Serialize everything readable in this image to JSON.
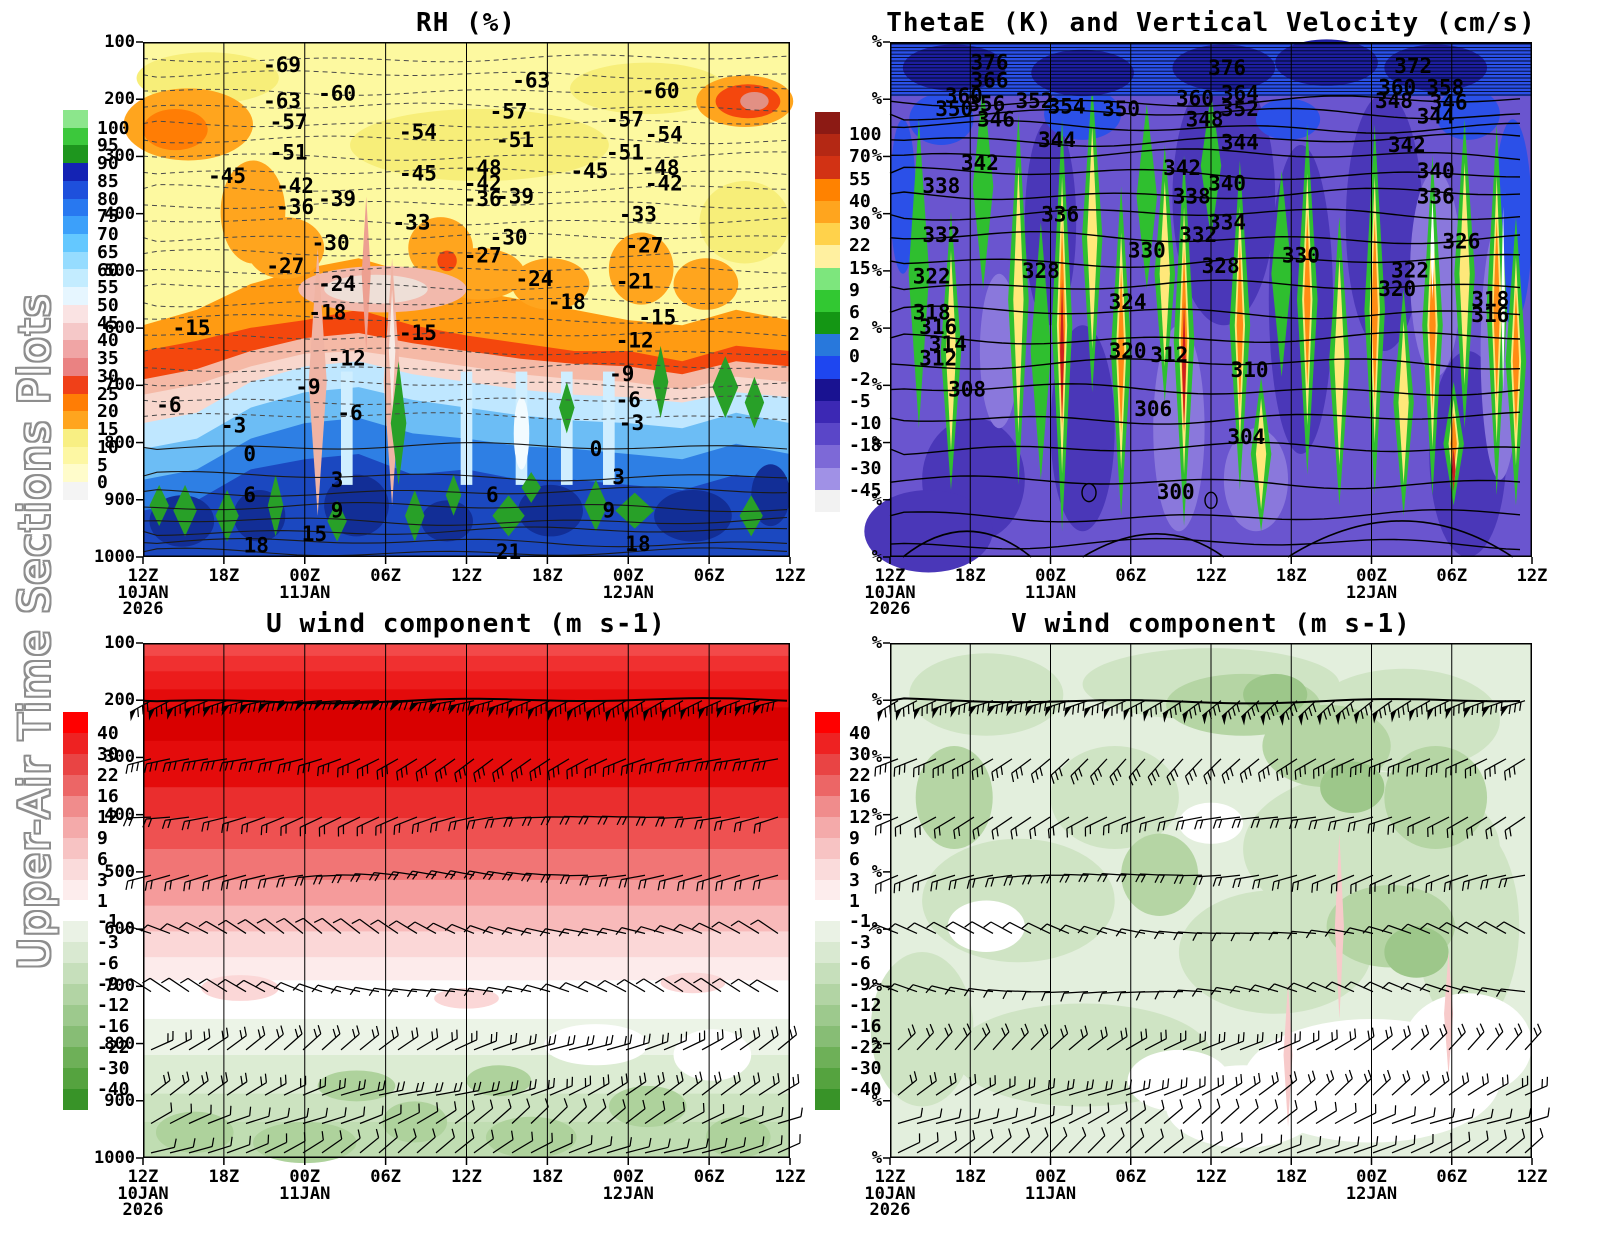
{
  "page": {
    "left_title": "Upper-Air Time Sections Plots"
  },
  "x_axis": {
    "ticks": [
      "12Z",
      "18Z",
      "00Z",
      "06Z",
      "12Z",
      "18Z",
      "00Z",
      "06Z",
      "12Z"
    ],
    "dates": [
      {
        "tick": 0,
        "text": "10JAN"
      },
      {
        "tick": 2,
        "text": "11JAN"
      },
      {
        "tick": 6,
        "text": "12JAN"
      }
    ],
    "year": {
      "tick": 0,
      "text": "2026"
    }
  },
  "chart_data": [
    {
      "id": "rh",
      "type": "filled_contour_time_height",
      "position": "top-left",
      "title": "RH (%)",
      "y_axis": {
        "type": "pressure_hpa",
        "ticks": [
          "100",
          "200",
          "300",
          "400",
          "500",
          "600",
          "700",
          "800",
          "900",
          "1000"
        ]
      },
      "x_ticks": [
        "12Z",
        "18Z",
        "00Z",
        "06Z",
        "12Z",
        "18Z",
        "00Z",
        "06Z",
        "12Z"
      ],
      "colorbar": {
        "unit": "%",
        "labels": [
          "100",
          "95",
          "90",
          "85",
          "80",
          "75",
          "70",
          "65",
          "60",
          "55",
          "50",
          "45",
          "40",
          "35",
          "30",
          "25",
          "20",
          "15",
          "10",
          "5",
          "0"
        ],
        "colors": [
          "#8ce68c",
          "#3cc83c",
          "#1e961e",
          "#1423b4",
          "#1e50dc",
          "#2878f0",
          "#3ca0fa",
          "#64c8ff",
          "#96dcff",
          "#c3ecff",
          "#e6f6ff",
          "#fae3e3",
          "#f5c8c8",
          "#f0a5a5",
          "#ea8282",
          "#f04018",
          "#ff7d05",
          "#ffa51e",
          "#f8ef83",
          "#fdf7a3",
          "#fffccb",
          "#f4f4f4"
        ]
      },
      "overlay_contours": {
        "name": "temperature",
        "unit": "degC",
        "style": "dashed above 0, solid at-and-below 0",
        "labels": [
          [
            -69,
            0.215,
            0.045
          ],
          [
            -63,
            0.215,
            0.115
          ],
          [
            -63,
            0.6,
            0.075
          ],
          [
            -60,
            0.3,
            0.1
          ],
          [
            -60,
            0.8,
            0.095
          ],
          [
            -57,
            0.225,
            0.155
          ],
          [
            -57,
            0.565,
            0.135
          ],
          [
            -57,
            0.745,
            0.15
          ],
          [
            -54,
            0.425,
            0.175
          ],
          [
            -54,
            0.805,
            0.18
          ],
          [
            -51,
            0.225,
            0.215
          ],
          [
            -51,
            0.575,
            0.19
          ],
          [
            -51,
            0.745,
            0.215
          ],
          [
            -48,
            0.525,
            0.245
          ],
          [
            -48,
            0.8,
            0.245
          ],
          [
            -45,
            0.13,
            0.26
          ],
          [
            -45,
            0.425,
            0.255
          ],
          [
            -45,
            0.69,
            0.25
          ],
          [
            -42,
            0.235,
            0.28
          ],
          [
            -42,
            0.525,
            0.275
          ],
          [
            -42,
            0.805,
            0.275
          ],
          [
            -39,
            0.3,
            0.305
          ],
          [
            -39,
            0.575,
            0.3
          ],
          [
            -36,
            0.235,
            0.32
          ],
          [
            -36,
            0.525,
            0.305
          ],
          [
            -33,
            0.415,
            0.35
          ],
          [
            -33,
            0.765,
            0.335
          ],
          [
            -30,
            0.29,
            0.39
          ],
          [
            -30,
            0.565,
            0.38
          ],
          [
            -27,
            0.22,
            0.435
          ],
          [
            -27,
            0.525,
            0.415
          ],
          [
            -27,
            0.775,
            0.395
          ],
          [
            -24,
            0.3,
            0.47
          ],
          [
            -24,
            0.605,
            0.46
          ],
          [
            -21,
            0.76,
            0.465
          ],
          [
            -18,
            0.285,
            0.525
          ],
          [
            -18,
            0.655,
            0.505
          ],
          [
            -15,
            0.075,
            0.555
          ],
          [
            -15,
            0.425,
            0.565
          ],
          [
            -15,
            0.795,
            0.535
          ],
          [
            -12,
            0.315,
            0.615
          ],
          [
            -12,
            0.76,
            0.58
          ],
          [
            -9,
            0.255,
            0.67
          ],
          [
            -9,
            0.74,
            0.645
          ],
          [
            -6,
            0.04,
            0.705
          ],
          [
            -6,
            0.32,
            0.72
          ],
          [
            -6,
            0.75,
            0.695
          ],
          [
            -3,
            0.14,
            0.745
          ],
          [
            -3,
            0.755,
            0.74
          ],
          [
            0,
            0.165,
            0.8
          ],
          [
            0,
            0.7,
            0.79
          ],
          [
            3,
            0.3,
            0.85
          ],
          [
            3,
            0.735,
            0.845
          ],
          [
            6,
            0.165,
            0.88
          ],
          [
            6,
            0.54,
            0.88
          ],
          [
            9,
            0.3,
            0.91
          ],
          [
            9,
            0.72,
            0.91
          ],
          [
            15,
            0.265,
            0.955
          ],
          [
            18,
            0.175,
            0.978
          ],
          [
            18,
            0.765,
            0.975
          ],
          [
            21,
            0.565,
            0.99
          ]
        ]
      }
    },
    {
      "id": "thetae",
      "type": "filled_contour_time_height",
      "position": "top-right",
      "title": "ThetaE (K) and Vertical Velocity (cm/s)",
      "y_axis": {
        "type": "percent_labels",
        "ticks": [
          "%",
          "%",
          "%",
          "%",
          "%",
          "%",
          "%",
          "%",
          "%",
          "%"
        ]
      },
      "x_ticks": [
        "12Z",
        "18Z",
        "00Z",
        "06Z",
        "12Z",
        "18Z",
        "00Z",
        "06Z",
        "12Z"
      ],
      "colorbar": {
        "unit": "cm/s",
        "labels": [
          "100",
          "70",
          "55",
          "40",
          "30",
          "22",
          "15",
          "9",
          "6",
          "2",
          "0",
          "-2",
          "-5",
          "-10",
          "-18",
          "-30",
          "-45"
        ],
        "colors": [
          "#8c1a14",
          "#b42814",
          "#d23214",
          "#ff8200",
          "#ffa51e",
          "#ffd24b",
          "#fff0a0",
          "#7de67d",
          "#32c832",
          "#149614",
          "#2878dc",
          "#1e46f0",
          "#191291",
          "#3c28b4",
          "#5a46c8",
          "#7d69d7",
          "#a091e6",
          "#f2f2f2"
        ]
      },
      "overlay_contours": {
        "name": "theta-e",
        "unit": "K",
        "style": "solid",
        "labels": [
          [
            376,
            0.155,
            0.04
          ],
          [
            376,
            0.525,
            0.05
          ],
          [
            372,
            0.815,
            0.047
          ],
          [
            366,
            0.155,
            0.075
          ],
          [
            364,
            0.545,
            0.1
          ],
          [
            360,
            0.115,
            0.105
          ],
          [
            360,
            0.475,
            0.11
          ],
          [
            360,
            0.79,
            0.088
          ],
          [
            358,
            0.865,
            0.088
          ],
          [
            356,
            0.15,
            0.12
          ],
          [
            354,
            0.275,
            0.125
          ],
          [
            352,
            0.225,
            0.115
          ],
          [
            352,
            0.545,
            0.13
          ],
          [
            350,
            0.1,
            0.13
          ],
          [
            350,
            0.36,
            0.13
          ],
          [
            348,
            0.49,
            0.15
          ],
          [
            348,
            0.785,
            0.115
          ],
          [
            346,
            0.165,
            0.15
          ],
          [
            346,
            0.87,
            0.117
          ],
          [
            344,
            0.26,
            0.19
          ],
          [
            344,
            0.545,
            0.195
          ],
          [
            344,
            0.85,
            0.145
          ],
          [
            342,
            0.14,
            0.235
          ],
          [
            342,
            0.455,
            0.245
          ],
          [
            342,
            0.805,
            0.2
          ],
          [
            340,
            0.525,
            0.275
          ],
          [
            340,
            0.85,
            0.25
          ],
          [
            338,
            0.08,
            0.28
          ],
          [
            338,
            0.47,
            0.3
          ],
          [
            336,
            0.265,
            0.335
          ],
          [
            336,
            0.85,
            0.3
          ],
          [
            334,
            0.525,
            0.35
          ],
          [
            332,
            0.08,
            0.375
          ],
          [
            332,
            0.48,
            0.375
          ],
          [
            330,
            0.4,
            0.405
          ],
          [
            330,
            0.64,
            0.415
          ],
          [
            328,
            0.235,
            0.445
          ],
          [
            328,
            0.515,
            0.435
          ],
          [
            326,
            0.89,
            0.387
          ],
          [
            324,
            0.37,
            0.505
          ],
          [
            322,
            0.065,
            0.455
          ],
          [
            322,
            0.81,
            0.444
          ],
          [
            320,
            0.79,
            0.48
          ],
          [
            320,
            0.37,
            0.6
          ],
          [
            318,
            0.065,
            0.525
          ],
          [
            318,
            0.935,
            0.5
          ],
          [
            316,
            0.075,
            0.553
          ],
          [
            316,
            0.935,
            0.53
          ],
          [
            314,
            0.09,
            0.586
          ],
          [
            312,
            0.075,
            0.615
          ],
          [
            312,
            0.435,
            0.608
          ],
          [
            310,
            0.56,
            0.637
          ],
          [
            308,
            0.12,
            0.675
          ],
          [
            306,
            0.41,
            0.713
          ],
          [
            304,
            0.555,
            0.767
          ],
          [
            300,
            0.445,
            0.874
          ]
        ]
      }
    },
    {
      "id": "u_wind",
      "type": "filled_contour_time_height_with_barbs",
      "position": "bottom-left",
      "title": "U wind component (m s-1)",
      "y_axis": {
        "type": "pressure_hpa",
        "ticks": [
          "100",
          "200",
          "300",
          "400",
          "500",
          "600",
          "700",
          "800",
          "900",
          "1000"
        ]
      },
      "x_ticks": [
        "12Z",
        "18Z",
        "00Z",
        "06Z",
        "12Z",
        "18Z",
        "00Z",
        "06Z",
        "12Z"
      ],
      "colorbar": {
        "unit": "m/s",
        "labels": [
          "40",
          "30",
          "22",
          "16",
          "12",
          "9",
          "6",
          "3",
          "1",
          "-1",
          "-3",
          "-6",
          "-9",
          "-12",
          "-16",
          "-22",
          "-30",
          "-40"
        ],
        "colors": [
          "#ff0000",
          "#ee2222",
          "#e94444",
          "#ec6666",
          "#f08c8c",
          "#f4aaaa",
          "#f7c3c3",
          "#fadbdb",
          "#fdeded",
          "#ffffff",
          "#eaf2e5",
          "#d9e9d1",
          "#c6dfbb",
          "#b2d4a4",
          "#9dc98d",
          "#87bd75",
          "#6eb058",
          "#55a33f",
          "#389328"
        ]
      },
      "wind_barb_levels_hpa": [
        200,
        300,
        400,
        500,
        600,
        700,
        810,
        890,
        940,
        990
      ]
    },
    {
      "id": "v_wind",
      "type": "filled_contour_time_height_with_barbs",
      "position": "bottom-right",
      "title": "V wind component (m s-1)",
      "y_axis": {
        "type": "percent_labels",
        "ticks": [
          "%",
          "%",
          "%",
          "%",
          "%",
          "%",
          "%",
          "%",
          "%",
          "%"
        ]
      },
      "x_ticks": [
        "12Z",
        "18Z",
        "00Z",
        "06Z",
        "12Z",
        "18Z",
        "00Z",
        "06Z",
        "12Z"
      ],
      "colorbar": {
        "unit": "m/s",
        "labels": [
          "40",
          "30",
          "22",
          "16",
          "12",
          "9",
          "6",
          "3",
          "1",
          "-1",
          "-3",
          "-6",
          "-9",
          "-12",
          "-16",
          "-22",
          "-30",
          "-40"
        ],
        "colors": [
          "#ff0000",
          "#ee2222",
          "#e94444",
          "#ec6666",
          "#f08c8c",
          "#f4aaaa",
          "#f7c3c3",
          "#fadbdb",
          "#fdeded",
          "#ffffff",
          "#eaf2e5",
          "#d9e9d1",
          "#c6dfbb",
          "#b2d4a4",
          "#9dc98d",
          "#87bd75",
          "#6eb058",
          "#55a33f",
          "#389328"
        ]
      },
      "wind_barb_levels_hpa": [
        200,
        300,
        400,
        500,
        600,
        700,
        810,
        890,
        940,
        990
      ]
    }
  ]
}
